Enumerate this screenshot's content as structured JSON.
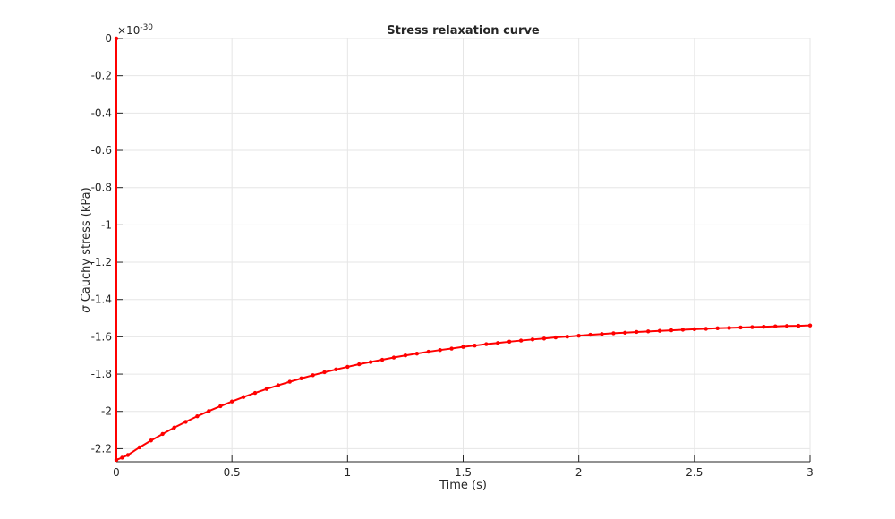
{
  "chart_data": {
    "type": "line",
    "title": "Stress relaxation curve",
    "xlabel": "Time (s)",
    "ylabel_symbol": "σ",
    "ylabel": "Cauchy stress (kPa)",
    "y_exponent_base": "×10",
    "y_exponent_power": "-30",
    "xlim": [
      0,
      3
    ],
    "ylim": [
      -2.27,
      0
    ],
    "grid": true,
    "x_ticks": [
      0,
      0.5,
      1,
      1.5,
      2,
      2.5,
      3
    ],
    "x_tick_labels": [
      "0",
      "0.5",
      "1",
      "1.5",
      "2",
      "2.5",
      "3"
    ],
    "y_ticks": [
      0,
      -0.2,
      -0.4,
      -0.6,
      -0.8,
      -1,
      -1.2,
      -1.4,
      -1.6,
      -1.8,
      -2,
      -2.2
    ],
    "y_tick_labels": [
      "0",
      "-0.2",
      "-0.4",
      "-0.6",
      "-0.8",
      "-1",
      "-1.2",
      "-1.4",
      "-1.6",
      "-1.8",
      "-2",
      "-2.2"
    ],
    "series": [
      {
        "color": "#ff0000",
        "marker": "dot",
        "x": [
          0,
          0,
          0.025,
          0.05,
          0.1,
          0.15,
          0.2,
          0.25,
          0.3,
          0.35,
          0.4,
          0.45,
          0.5,
          0.55,
          0.6,
          0.65,
          0.7,
          0.75,
          0.8,
          0.85,
          0.9,
          0.95,
          1.0,
          1.05,
          1.1,
          1.15,
          1.2,
          1.25,
          1.3,
          1.35,
          1.4,
          1.45,
          1.5,
          1.55,
          1.6,
          1.65,
          1.7,
          1.75,
          1.8,
          1.85,
          1.9,
          1.95,
          2.0,
          2.05,
          2.1,
          2.15,
          2.2,
          2.25,
          2.3,
          2.35,
          2.4,
          2.45,
          2.5,
          2.55,
          2.6,
          2.65,
          2.7,
          2.75,
          2.8,
          2.85,
          2.9,
          2.95,
          3.0
        ],
        "y": [
          0,
          -2.26,
          -2.248,
          -2.234,
          -2.193,
          -2.156,
          -2.121,
          -2.087,
          -2.056,
          -2.026,
          -1.998,
          -1.972,
          -1.947,
          -1.923,
          -1.901,
          -1.88,
          -1.86,
          -1.841,
          -1.823,
          -1.806,
          -1.79,
          -1.775,
          -1.761,
          -1.747,
          -1.735,
          -1.723,
          -1.711,
          -1.7,
          -1.69,
          -1.68,
          -1.671,
          -1.663,
          -1.654,
          -1.647,
          -1.639,
          -1.633,
          -1.626,
          -1.62,
          -1.614,
          -1.609,
          -1.603,
          -1.599,
          -1.594,
          -1.589,
          -1.585,
          -1.581,
          -1.578,
          -1.574,
          -1.571,
          -1.568,
          -1.565,
          -1.562,
          -1.559,
          -1.557,
          -1.554,
          -1.552,
          -1.55,
          -1.548,
          -1.546,
          -1.544,
          -1.542,
          -1.541,
          -1.539
        ]
      }
    ]
  }
}
